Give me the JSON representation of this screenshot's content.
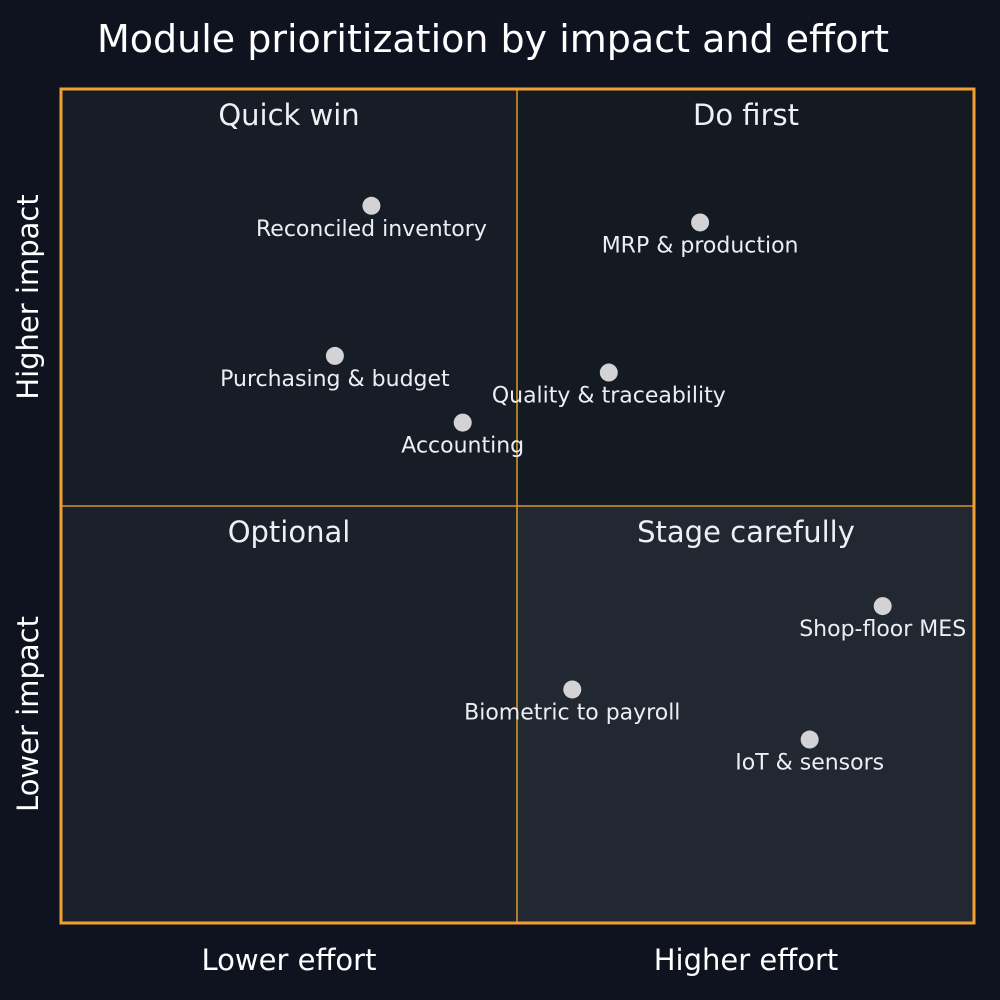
{
  "chart_data": {
    "type": "scatter",
    "title": "Module prioritization by impact and effort",
    "xlabel_low": "Lower effort",
    "xlabel_high": "Higher effort",
    "ylabel_low": "Lower impact",
    "ylabel_high": "Higher impact",
    "xlim": [
      0,
      1
    ],
    "ylim": [
      0,
      1
    ],
    "grid": false,
    "quadrants": [
      {
        "id": "quick-win",
        "label": "Quick win",
        "position": "top-left",
        "color": "#171d26"
      },
      {
        "id": "do-first",
        "label": "Do first",
        "position": "top-right",
        "color": "#141a22"
      },
      {
        "id": "optional",
        "label": "Optional",
        "position": "bottom-left",
        "color": "#1b212b"
      },
      {
        "id": "stage-carefully",
        "label": "Stage carefully",
        "position": "bottom-right",
        "color": "#212832"
      }
    ],
    "points": [
      {
        "label": "Reconciled inventory",
        "x": 0.34,
        "y": 0.86
      },
      {
        "label": "MRP & production",
        "x": 0.7,
        "y": 0.84
      },
      {
        "label": "Purchasing & budget",
        "x": 0.3,
        "y": 0.68
      },
      {
        "label": "Quality & traceability",
        "x": 0.6,
        "y": 0.66
      },
      {
        "label": "Accounting",
        "x": 0.44,
        "y": 0.6
      },
      {
        "label": "Shop-floor MES",
        "x": 0.9,
        "y": 0.38
      },
      {
        "label": "Biometric to payroll",
        "x": 0.56,
        "y": 0.28
      },
      {
        "label": "IoT & sensors",
        "x": 0.82,
        "y": 0.22
      }
    ]
  },
  "colors": {
    "background": "#0f1320",
    "frame": "#f0a030",
    "divider": "#d6922a",
    "point": "#d3d3d5",
    "text": "#ffffff"
  }
}
